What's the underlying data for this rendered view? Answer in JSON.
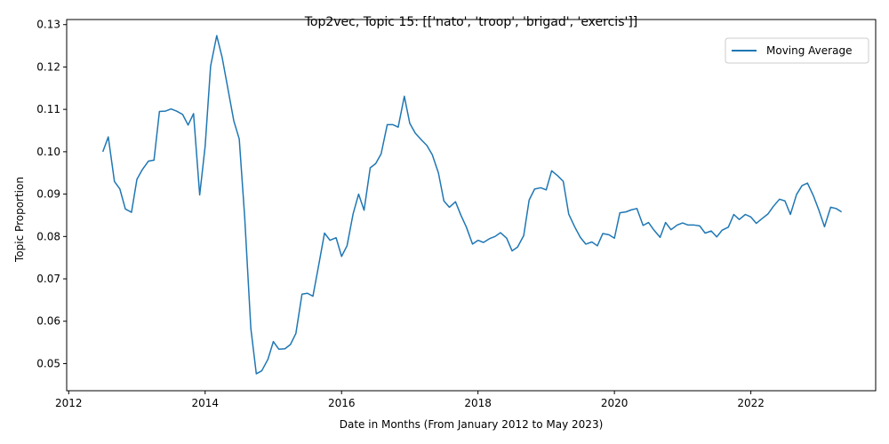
{
  "chart_data": {
    "type": "line",
    "title": "Top2vec, Topic 15: [['nato', 'troop', 'brigad', 'exercis']]",
    "xlabel": "Date in Months (From January 2012 to May 2023)",
    "ylabel": "Topic Proportion",
    "xlim": [
      2011.97,
      2023.83
    ],
    "ylim": [
      0.0436,
      0.1312
    ],
    "xticks": [
      2012,
      2014,
      2016,
      2018,
      2020,
      2022
    ],
    "xtick_labels": [
      "2012",
      "2014",
      "2016",
      "2018",
      "2020",
      "2022"
    ],
    "yticks": [
      0.05,
      0.06,
      0.07,
      0.08,
      0.09,
      0.1,
      0.11,
      0.12,
      0.13
    ],
    "ytick_labels": [
      "0.05",
      "0.06",
      "0.07",
      "0.08",
      "0.09",
      "0.10",
      "0.11",
      "0.12",
      "0.13"
    ],
    "grid": false,
    "legend": {
      "position": "top-right",
      "entries": [
        "Moving Average"
      ]
    },
    "series": [
      {
        "name": "Moving Average",
        "color": "#1f77b4",
        "x": [
          2012.5,
          2012.58,
          2012.67,
          2012.75,
          2012.83,
          2012.92,
          2013.0,
          2013.08,
          2013.17,
          2013.25,
          2013.33,
          2013.42,
          2013.5,
          2013.58,
          2013.67,
          2013.75,
          2013.83,
          2013.92,
          2014.0,
          2014.08,
          2014.17,
          2014.25,
          2014.33,
          2014.42,
          2014.5,
          2014.58,
          2014.67,
          2014.75,
          2014.83,
          2014.92,
          2015.0,
          2015.08,
          2015.17,
          2015.25,
          2015.33,
          2015.42,
          2015.5,
          2015.58,
          2015.67,
          2015.75,
          2015.83,
          2015.92,
          2016.0,
          2016.08,
          2016.17,
          2016.25,
          2016.33,
          2016.42,
          2016.5,
          2016.58,
          2016.67,
          2016.75,
          2016.83,
          2016.92,
          2017.0,
          2017.08,
          2017.17,
          2017.25,
          2017.33,
          2017.42,
          2017.5,
          2017.58,
          2017.67,
          2017.75,
          2017.83,
          2017.92,
          2018.0,
          2018.08,
          2018.17,
          2018.25,
          2018.33,
          2018.42,
          2018.5,
          2018.58,
          2018.67,
          2018.75,
          2018.83,
          2018.92,
          2019.0,
          2019.08,
          2019.17,
          2019.25,
          2019.33,
          2019.42,
          2019.5,
          2019.58,
          2019.67,
          2019.75,
          2019.83,
          2019.92,
          2020.0,
          2020.08,
          2020.17,
          2020.25,
          2020.33,
          2020.42,
          2020.5,
          2020.58,
          2020.67,
          2020.75,
          2020.83,
          2020.92,
          2021.0,
          2021.08,
          2021.17,
          2021.25,
          2021.33,
          2021.42,
          2021.5,
          2021.58,
          2021.67,
          2021.75,
          2021.83,
          2021.92,
          2022.0,
          2022.08,
          2022.17,
          2022.25,
          2022.33,
          2022.42,
          2022.5,
          2022.58,
          2022.67,
          2022.75,
          2022.83,
          2022.92,
          2023.0,
          2023.08,
          2023.17,
          2023.25,
          2023.33
        ],
        "y": [
          0.1,
          0.1035,
          0.093,
          0.0912,
          0.0865,
          0.0857,
          0.0935,
          0.0958,
          0.0978,
          0.098,
          0.1095,
          0.1096,
          0.1101,
          0.1096,
          0.1088,
          0.1063,
          0.109,
          0.0898,
          0.1013,
          0.1202,
          0.1274,
          0.1222,
          0.1152,
          0.1073,
          0.103,
          0.0845,
          0.0583,
          0.0476,
          0.0483,
          0.051,
          0.0552,
          0.0534,
          0.0535,
          0.0545,
          0.0571,
          0.0664,
          0.0666,
          0.0659,
          0.0737,
          0.0808,
          0.0791,
          0.0797,
          0.0753,
          0.0778,
          0.0854,
          0.09,
          0.0862,
          0.0962,
          0.0972,
          0.0995,
          0.1064,
          0.1064,
          0.1058,
          0.1131,
          0.1067,
          0.1044,
          0.1028,
          0.1015,
          0.0993,
          0.095,
          0.0884,
          0.0869,
          0.0882,
          0.085,
          0.0822,
          0.0782,
          0.0791,
          0.0786,
          0.0795,
          0.08,
          0.0809,
          0.0796,
          0.0766,
          0.0775,
          0.0802,
          0.0886,
          0.0912,
          0.0915,
          0.091,
          0.0955,
          0.0943,
          0.093,
          0.0853,
          0.0822,
          0.0798,
          0.0782,
          0.0787,
          0.0778,
          0.0807,
          0.0804,
          0.0796,
          0.0856,
          0.0858,
          0.0863,
          0.0866,
          0.0826,
          0.0833,
          0.0815,
          0.0798,
          0.0833,
          0.0816,
          0.0827,
          0.0832,
          0.0827,
          0.0827,
          0.0825,
          0.0808,
          0.0813,
          0.0799,
          0.0815,
          0.0822,
          0.0852,
          0.084,
          0.0852,
          0.0846,
          0.0831,
          0.0843,
          0.0853,
          0.0871,
          0.0888,
          0.0884,
          0.0852,
          0.0899,
          0.092,
          0.0926,
          0.0895,
          0.0861,
          0.0823,
          0.0869,
          0.0866,
          0.0858
        ]
      }
    ]
  }
}
